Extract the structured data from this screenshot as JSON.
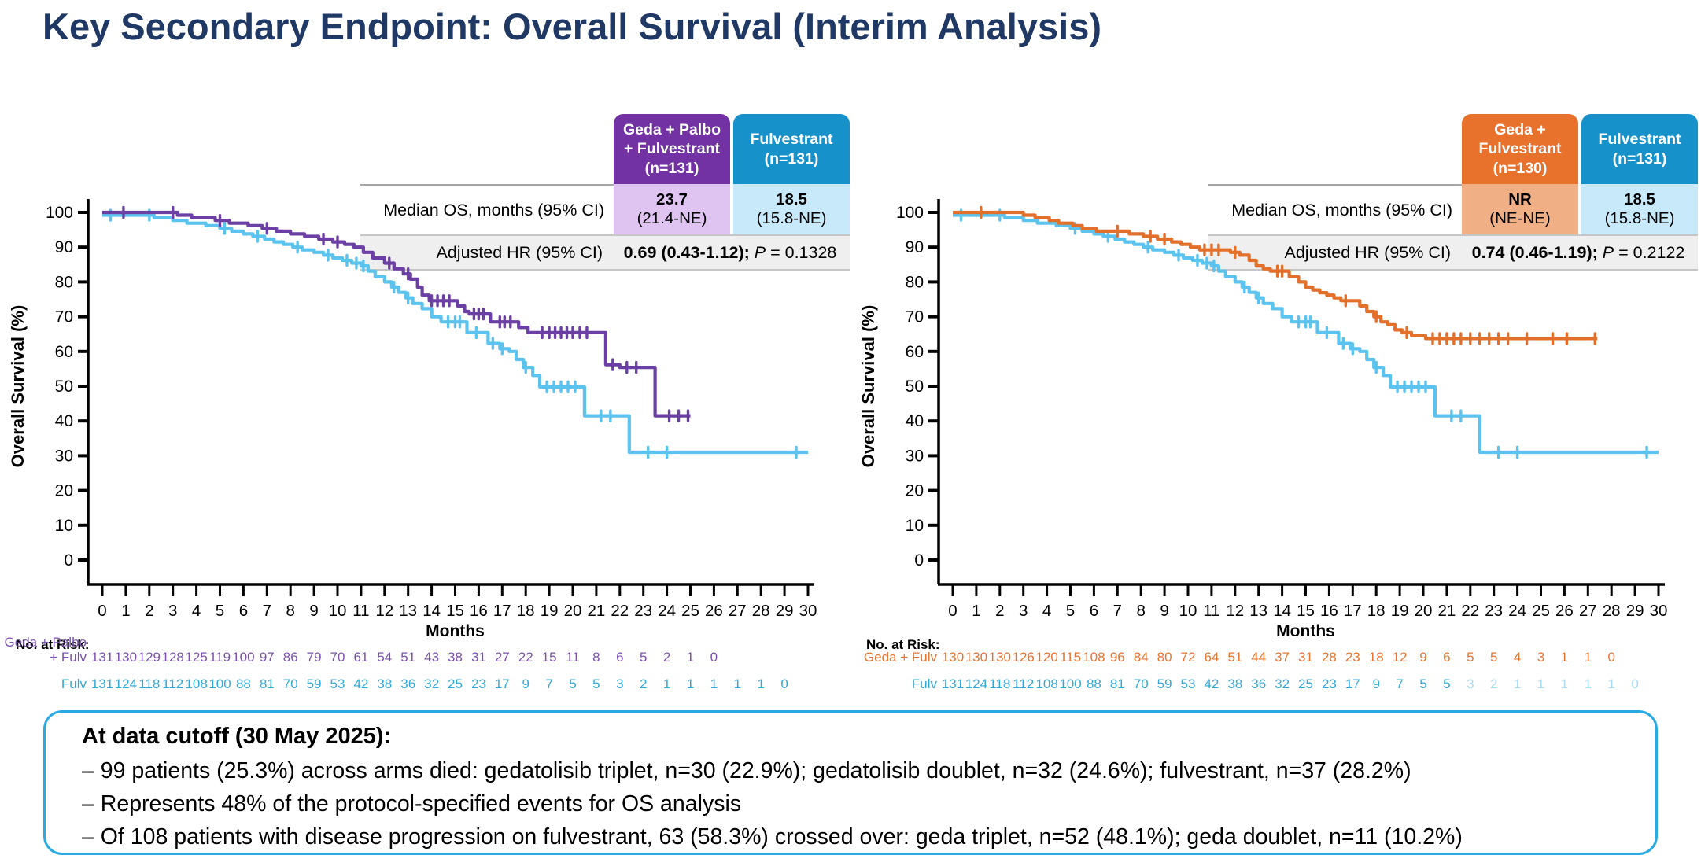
{
  "title": "Key Secondary Endpoint: Overall Survival (Interim Analysis)",
  "colors": {
    "title_navy": "#1F3864",
    "axis_black": "#000000",
    "note_border_blue": "#29ABE2",
    "hr_row_gray": "#EFEFEF"
  },
  "chart_data": [
    {
      "type": "line",
      "km_style": "step",
      "ylabel": "Overall Survival (%)",
      "xlabel": "Months",
      "xlim": [
        0,
        30
      ],
      "ylim": [
        0,
        100
      ],
      "xtick_step": 1,
      "ytick_step": 10,
      "table": {
        "col1_lines": "Geda + Palbo\n+ Fulvestrant\n(n=131)",
        "col1_header_bg": "#7232A3",
        "col1_cell_bg": "#DFC4F2",
        "col1_value": "23.7",
        "col1_ci": "(21.4-NE)",
        "col2_lines": "Fulvestrant\n(n=131)",
        "col2_header_bg": "#1791C9",
        "col2_cell_bg": "#C8E9F9",
        "col2_value": "18.5",
        "col2_ci": "(15.8-NE)",
        "row1_label": "Median OS, months (95% CI)",
        "row2_label": "Adjusted HR (95% CI)",
        "hr_bold": "0.69 (0.43-1.12);",
        "p_label": "P",
        "p_rest": " = 0.1328"
      },
      "series": [
        {
          "key": "geda-palbo-fulv",
          "name": "Geda + Palbo + Fulvestrant",
          "color": "#6B3FA3",
          "steps": [
            [
              0,
              100
            ],
            [
              3.2,
              99.2
            ],
            [
              3.8,
              98.5
            ],
            [
              4.8,
              97.7
            ],
            [
              5.4,
              96.9
            ],
            [
              6.2,
              96.2
            ],
            [
              6.8,
              95.4
            ],
            [
              7.4,
              94.6
            ],
            [
              8,
              93.8
            ],
            [
              8.6,
              93.1
            ],
            [
              9.2,
              92.3
            ],
            [
              9.8,
              91.5
            ],
            [
              10.3,
              90.8
            ],
            [
              10.7,
              90
            ],
            [
              11.1,
              88.5
            ],
            [
              11.5,
              86.9
            ],
            [
              12,
              85.4
            ],
            [
              12.4,
              83.8
            ],
            [
              12.8,
              82.3
            ],
            [
              13.1,
              80.8
            ],
            [
              13.4,
              78.5
            ],
            [
              13.6,
              76.2
            ],
            [
              13.9,
              74.6
            ],
            [
              15.1,
              73.1
            ],
            [
              15.4,
              71.5
            ],
            [
              15.6,
              70.8
            ],
            [
              16.5,
              68.5
            ],
            [
              17.7,
              66.9
            ],
            [
              18.1,
              65.4
            ],
            [
              21.4,
              56.2
            ],
            [
              22,
              55.4
            ],
            [
              23.5,
              41.5
            ],
            [
              25,
              41.5
            ]
          ],
          "censors": [
            0.9,
            3,
            5,
            7,
            9.4,
            10,
            12.2,
            13,
            14,
            14.25,
            14.5,
            14.75,
            15.8,
            16,
            16.2,
            16.9,
            17.1,
            17.35,
            18.7,
            19,
            19.25,
            19.5,
            19.75,
            20,
            20.3,
            20.6,
            21.7,
            22.3,
            22.7,
            24.1,
            24.5,
            24.9
          ]
        },
        {
          "key": "fulvestrant",
          "name": "Fulvestrant",
          "color": "#5BC3EE",
          "steps": [
            [
              0,
              99.2
            ],
            [
              2.2,
              98.5
            ],
            [
              3,
              97.7
            ],
            [
              3.6,
              96.9
            ],
            [
              4.4,
              96.2
            ],
            [
              5,
              95.4
            ],
            [
              5.5,
              94.6
            ],
            [
              6,
              93.8
            ],
            [
              6.4,
              93.1
            ],
            [
              6.9,
              92.3
            ],
            [
              7.3,
              91.5
            ],
            [
              7.7,
              90.8
            ],
            [
              8.1,
              90
            ],
            [
              8.5,
              89.2
            ],
            [
              9,
              88.5
            ],
            [
              9.4,
              87.7
            ],
            [
              9.8,
              86.9
            ],
            [
              10.2,
              86.2
            ],
            [
              10.6,
              85.4
            ],
            [
              11,
              84.6
            ],
            [
              11.3,
              83.1
            ],
            [
              11.6,
              81.5
            ],
            [
              12,
              80
            ],
            [
              12.3,
              78.5
            ],
            [
              12.6,
              77
            ],
            [
              12.9,
              75.4
            ],
            [
              13.2,
              73.8
            ],
            [
              13.6,
              72.3
            ],
            [
              14,
              70
            ],
            [
              14.4,
              68.5
            ],
            [
              15.5,
              65.4
            ],
            [
              16.4,
              62.3
            ],
            [
              16.9,
              60.8
            ],
            [
              17.3,
              60
            ],
            [
              17.6,
              57.7
            ],
            [
              17.9,
              55.4
            ],
            [
              18.3,
              53.1
            ],
            [
              18.6,
              49.8
            ],
            [
              20.5,
              41.5
            ],
            [
              22.4,
              31
            ],
            [
              30,
              31
            ]
          ],
          "censors": [
            0.35,
            2,
            5.2,
            6.6,
            8.3,
            9.6,
            10.4,
            10.8,
            11.1,
            12.4,
            13,
            14.7,
            15,
            15.2,
            15.9,
            16.6,
            17,
            18,
            18.9,
            19.2,
            19.5,
            19.8,
            20.1,
            21.2,
            21.6,
            23.2,
            24,
            29.5
          ]
        }
      ],
      "risk_table": {
        "label": "No. at Risk:",
        "rows": [
          {
            "label_lines": "Geda + Palbo\n+ Fulv",
            "color": "#7B52AE",
            "values": [
              131,
              130,
              129,
              128,
              125,
              119,
              100,
              97,
              86,
              79,
              70,
              61,
              54,
              51,
              43,
              38,
              31,
              27,
              22,
              15,
              11,
              8,
              6,
              5,
              2,
              1,
              0
            ]
          },
          {
            "label_lines": "Fulv",
            "color": "#2EA9DC",
            "values": [
              131,
              124,
              118,
              112,
              108,
              100,
              88,
              81,
              70,
              59,
              53,
              42,
              38,
              36,
              32,
              25,
              23,
              17,
              9,
              7,
              5,
              5,
              3,
              2,
              1,
              1,
              1,
              1,
              1,
              0
            ]
          }
        ]
      }
    },
    {
      "type": "line",
      "km_style": "step",
      "ylabel": "Overall Survival (%)",
      "xlabel": "Months",
      "xlim": [
        0,
        30
      ],
      "ylim": [
        0,
        100
      ],
      "xtick_step": 1,
      "ytick_step": 10,
      "table": {
        "col1_lines": "Geda +\nFulvestrant\n(n=130)",
        "col1_header_bg": "#E8722C",
        "col1_cell_bg": "#F1AF85",
        "col1_value": "NR",
        "col1_ci": "(NE-NE)",
        "col2_lines": "Fulvestrant\n(n=131)",
        "col2_header_bg": "#1791C9",
        "col2_cell_bg": "#C8E9F9",
        "col2_value": "18.5",
        "col2_ci": "(15.8-NE)",
        "row1_label": "Median OS, months (95% CI)",
        "row2_label": "Adjusted HR (95% CI)",
        "hr_bold": "0.74 (0.46-1.19);",
        "p_label": "P",
        "p_rest": " = 0.2122"
      },
      "series": [
        {
          "key": "geda-fulv",
          "name": "Geda + Fulvestrant",
          "color": "#E2702B",
          "steps": [
            [
              0,
              100
            ],
            [
              3,
              99.2
            ],
            [
              3.5,
              98.5
            ],
            [
              4.1,
              97.7
            ],
            [
              4.5,
              96.9
            ],
            [
              5.1,
              96.2
            ],
            [
              5.5,
              95.4
            ],
            [
              6.1,
              94.6
            ],
            [
              7.5,
              93.8
            ],
            [
              8.1,
              93.1
            ],
            [
              8.7,
              92.3
            ],
            [
              9.3,
              91.5
            ],
            [
              9.7,
              90.8
            ],
            [
              10.1,
              90
            ],
            [
              10.5,
              89.2
            ],
            [
              11.8,
              88.5
            ],
            [
              12.2,
              87.7
            ],
            [
              12.6,
              86.2
            ],
            [
              12.9,
              84.6
            ],
            [
              13.2,
              83.8
            ],
            [
              13.5,
              83.1
            ],
            [
              14.3,
              81.5
            ],
            [
              14.7,
              80
            ],
            [
              15,
              78.5
            ],
            [
              15.3,
              77.7
            ],
            [
              15.6,
              76.9
            ],
            [
              15.9,
              76.2
            ],
            [
              16.2,
              75.4
            ],
            [
              16.5,
              74.6
            ],
            [
              17.3,
              73.1
            ],
            [
              17.6,
              71.5
            ],
            [
              17.9,
              70
            ],
            [
              18.2,
              68.5
            ],
            [
              18.5,
              67.7
            ],
            [
              18.8,
              66.2
            ],
            [
              19.1,
              65.4
            ],
            [
              19.5,
              64.6
            ],
            [
              20.1,
              63.7
            ],
            [
              27.4,
              63.7
            ]
          ],
          "censors": [
            1.2,
            7,
            8.4,
            9,
            10.7,
            11,
            11.3,
            12,
            13.8,
            14,
            16.7,
            18,
            19.3,
            20.4,
            20.7,
            21,
            21.3,
            21.6,
            22,
            22.4,
            22.8,
            23.2,
            23.6,
            24.4,
            25.5,
            26.1,
            27.3
          ]
        },
        {
          "key": "fulvestrant",
          "name": "Fulvestrant",
          "color": "#5BC3EE",
          "steps": [
            [
              0,
              99.2
            ],
            [
              2.2,
              98.5
            ],
            [
              3,
              97.7
            ],
            [
              3.6,
              96.9
            ],
            [
              4.4,
              96.2
            ],
            [
              5,
              95.4
            ],
            [
              5.5,
              94.6
            ],
            [
              6,
              93.8
            ],
            [
              6.4,
              93.1
            ],
            [
              6.9,
              92.3
            ],
            [
              7.3,
              91.5
            ],
            [
              7.7,
              90.8
            ],
            [
              8.1,
              90
            ],
            [
              8.5,
              89.2
            ],
            [
              9,
              88.5
            ],
            [
              9.4,
              87.7
            ],
            [
              9.8,
              86.9
            ],
            [
              10.2,
              86.2
            ],
            [
              10.6,
              85.4
            ],
            [
              11,
              84.6
            ],
            [
              11.3,
              83.1
            ],
            [
              11.6,
              81.5
            ],
            [
              12,
              80
            ],
            [
              12.3,
              78.5
            ],
            [
              12.6,
              77
            ],
            [
              12.9,
              75.4
            ],
            [
              13.2,
              73.8
            ],
            [
              13.6,
              72.3
            ],
            [
              14,
              70
            ],
            [
              14.4,
              68.5
            ],
            [
              15.5,
              65.4
            ],
            [
              16.4,
              62.3
            ],
            [
              16.9,
              60.8
            ],
            [
              17.3,
              60
            ],
            [
              17.6,
              57.7
            ],
            [
              17.9,
              55.4
            ],
            [
              18.3,
              53.1
            ],
            [
              18.6,
              49.8
            ],
            [
              20.5,
              41.5
            ],
            [
              22.4,
              31
            ],
            [
              30,
              31
            ]
          ],
          "censors": [
            0.35,
            2,
            5.2,
            6.6,
            8.3,
            9.6,
            10.4,
            10.8,
            11.1,
            12.4,
            13,
            14.7,
            15,
            15.2,
            15.9,
            16.6,
            17,
            18,
            18.9,
            19.2,
            19.5,
            19.8,
            20.1,
            21.2,
            21.6,
            23.2,
            24,
            29.5
          ]
        }
      ],
      "risk_table": {
        "label": "No. at Risk:",
        "rows": [
          {
            "label_lines": "Geda + Fulv",
            "color": "#E8732E",
            "values": [
              130,
              130,
              130,
              126,
              120,
              115,
              108,
              96,
              84,
              80,
              72,
              64,
              51,
              44,
              37,
              31,
              28,
              23,
              18,
              12,
              9,
              6,
              5,
              5,
              4,
              3,
              1,
              1,
              0
            ]
          },
          {
            "label_lines": "Fulv",
            "color": "#2EA9DC",
            "values": [
              131,
              124,
              118,
              112,
              108,
              100,
              88,
              81,
              70,
              59,
              53,
              42,
              38,
              36,
              32,
              25,
              23,
              17,
              9,
              7,
              5,
              5,
              3,
              2,
              1,
              1,
              1,
              1,
              1,
              0
            ],
            "faded_from": 22,
            "faded_color": "#A5DBF3"
          }
        ]
      }
    }
  ],
  "note": {
    "heading": "At data cutoff (30 May 2025):",
    "bullets": [
      "–  99 patients (25.3%) across arms died: gedatolisib triplet, n=30 (22.9%); gedatolisib doublet, n=32 (24.6%); fulvestrant, n=37 (28.2%)",
      "–  Represents 48% of the protocol-specified events for OS analysis",
      "–  Of 108 patients with disease progression on fulvestrant, 63 (58.3%) crossed over: geda triplet, n=52 (48.1%); geda doublet, n=11 (10.2%)"
    ]
  }
}
